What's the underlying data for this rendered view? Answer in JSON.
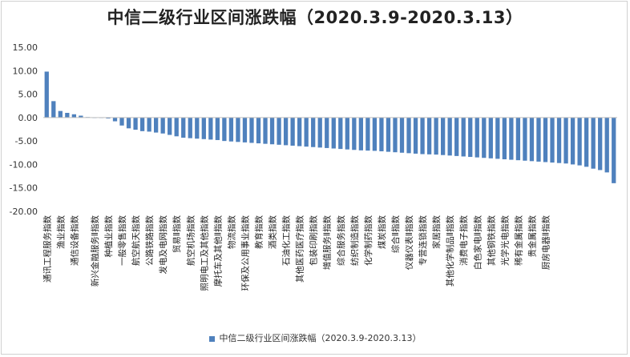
{
  "chart_data": {
    "type": "bar",
    "title": "中信二级行业区间涨跌幅（2020.3.9-2020.3.13）",
    "xlabel": "",
    "ylabel": "",
    "ylim": [
      -20,
      15
    ],
    "yticks": [
      "15.00",
      "10.00",
      "5.00",
      "0.00",
      "-5.00",
      "-10.00",
      "-15.00",
      "-20.00"
    ],
    "grid": false,
    "legend_position": "bottom",
    "bar_color": "#4f81bd",
    "series": [
      {
        "name": "中信二级行业区间涨跌幅（2020.3.9-2020.3.13）",
        "values": [
          9.8,
          3.5,
          1.4,
          1.0,
          0.7,
          0.4,
          0.1,
          0.0,
          -0.1,
          -0.2,
          -0.8,
          -1.7,
          -2.3,
          -2.6,
          -2.9,
          -3.0,
          -3.2,
          -3.4,
          -3.7,
          -4.0,
          -4.3,
          -4.4,
          -4.5,
          -4.6,
          -4.7,
          -4.8,
          -5.0,
          -5.1,
          -5.2,
          -5.3,
          -5.4,
          -5.5,
          -5.6,
          -5.7,
          -5.8,
          -5.9,
          -6.0,
          -6.1,
          -6.2,
          -6.3,
          -6.4,
          -6.5,
          -6.6,
          -6.7,
          -6.8,
          -6.9,
          -7.0,
          -7.05,
          -7.1,
          -7.2,
          -7.3,
          -7.4,
          -7.5,
          -7.6,
          -7.7,
          -7.8,
          -7.85,
          -7.9,
          -8.0,
          -8.1,
          -8.2,
          -8.3,
          -8.4,
          -8.5,
          -8.6,
          -8.7,
          -8.8,
          -8.9,
          -9.0,
          -9.1,
          -9.2,
          -9.3,
          -9.4,
          -9.5,
          -9.6,
          -9.7,
          -9.8,
          -10.0,
          -10.2,
          -10.5,
          -10.9,
          -11.2,
          -11.7,
          -14.0
        ]
      }
    ],
    "category_labels": [
      {
        "index": 0,
        "text": "通讯工程服务指数"
      },
      {
        "index": 2,
        "text": "渔业指数"
      },
      {
        "index": 4,
        "text": "通信设备指数"
      },
      {
        "index": 7,
        "text": "新兴金融服务Ⅱ指数"
      },
      {
        "index": 9,
        "text": "种植业指数"
      },
      {
        "index": 11,
        "text": "一般零售指数"
      },
      {
        "index": 13,
        "text": "航空航天指数"
      },
      {
        "index": 15,
        "text": "公路铁路指数"
      },
      {
        "index": 17,
        "text": "发电及电网指数"
      },
      {
        "index": 19,
        "text": "贸易Ⅱ指数"
      },
      {
        "index": 21,
        "text": "航空机场指数"
      },
      {
        "index": 23,
        "text": "照明电工及其他指数"
      },
      {
        "index": 25,
        "text": "摩托车及其他Ⅱ指数"
      },
      {
        "index": 27,
        "text": "物流指数"
      },
      {
        "index": 29,
        "text": "环保及公用事业指数"
      },
      {
        "index": 31,
        "text": "教育指数"
      },
      {
        "index": 33,
        "text": "酒类指数"
      },
      {
        "index": 35,
        "text": "石油化工指数"
      },
      {
        "index": 37,
        "text": "其他医药医疗指数"
      },
      {
        "index": 39,
        "text": "包装印刷指数"
      },
      {
        "index": 41,
        "text": "增值服务Ⅱ指数"
      },
      {
        "index": 43,
        "text": "综合服务指数"
      },
      {
        "index": 45,
        "text": "纺织制造指数"
      },
      {
        "index": 47,
        "text": "化学制药指数"
      },
      {
        "index": 49,
        "text": "煤炭指数"
      },
      {
        "index": 51,
        "text": "综合Ⅱ指数"
      },
      {
        "index": 53,
        "text": "仪器仪表Ⅱ指数"
      },
      {
        "index": 55,
        "text": "专营连锁指数"
      },
      {
        "index": 57,
        "text": "家居指数"
      },
      {
        "index": 59,
        "text": "其他化学制品Ⅱ指数"
      },
      {
        "index": 61,
        "text": "消费电子指数"
      },
      {
        "index": 63,
        "text": "白色家电Ⅱ指数"
      },
      {
        "index": 65,
        "text": "其他钢铁指数"
      },
      {
        "index": 67,
        "text": "光学光电指数"
      },
      {
        "index": 69,
        "text": "稀有金属指数"
      },
      {
        "index": 71,
        "text": "贵金属指数"
      },
      {
        "index": 73,
        "text": "厨房电器Ⅱ指数"
      }
    ]
  }
}
